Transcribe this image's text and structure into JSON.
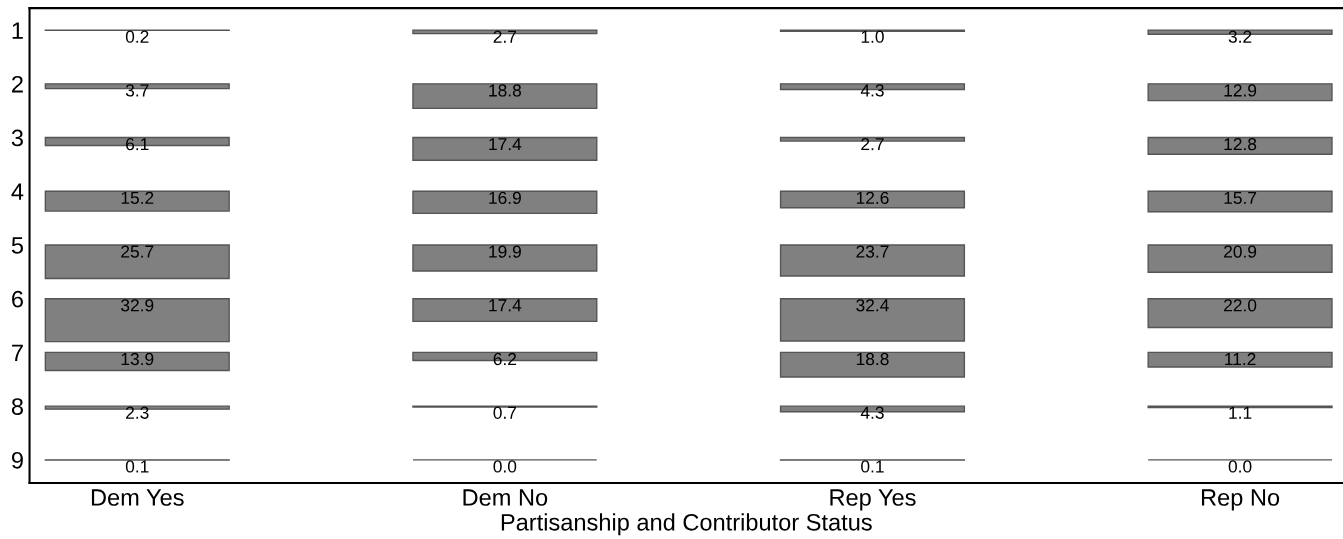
{
  "chart_data": {
    "type": "heatmap",
    "xlabel": "Partisanship and Contributor Status",
    "categories": [
      "Dem Yes",
      "Dem No",
      "Rep Yes",
      "Rep No"
    ],
    "y_categories": [
      "1",
      "2",
      "3",
      "4",
      "5",
      "6",
      "7",
      "8",
      "9"
    ],
    "cells": [
      [
        0.2,
        2.7,
        1.0,
        3.2
      ],
      [
        3.7,
        18.8,
        4.3,
        12.9
      ],
      [
        6.1,
        17.4,
        2.7,
        12.8
      ],
      [
        15.2,
        16.9,
        12.6,
        15.7
      ],
      [
        25.7,
        19.9,
        23.7,
        20.9
      ],
      [
        32.9,
        17.4,
        32.4,
        22.0
      ],
      [
        13.9,
        6.2,
        18.8,
        11.2
      ],
      [
        2.3,
        0.7,
        4.3,
        1.1
      ],
      [
        0.1,
        0.0,
        0.1,
        0.0
      ]
    ],
    "cell_labels": [
      [
        "0.2",
        "2.7",
        "1.0",
        "3.2"
      ],
      [
        "3.7",
        "18.8",
        "4.3",
        "12.9"
      ],
      [
        "6.1",
        "17.4",
        "2.7",
        "12.8"
      ],
      [
        "15.2",
        "16.9",
        "12.6",
        "15.7"
      ],
      [
        "25.7",
        "19.9",
        "23.7",
        "20.9"
      ],
      [
        "32.9",
        "17.4",
        "32.4",
        "22.0"
      ],
      [
        "13.9",
        "6.2",
        "18.8",
        "11.2"
      ],
      [
        "2.3",
        "0.7",
        "4.3",
        "1.1"
      ],
      [
        "0.1",
        "0.0",
        "0.1",
        "0.0"
      ]
    ],
    "color": "#808080"
  }
}
